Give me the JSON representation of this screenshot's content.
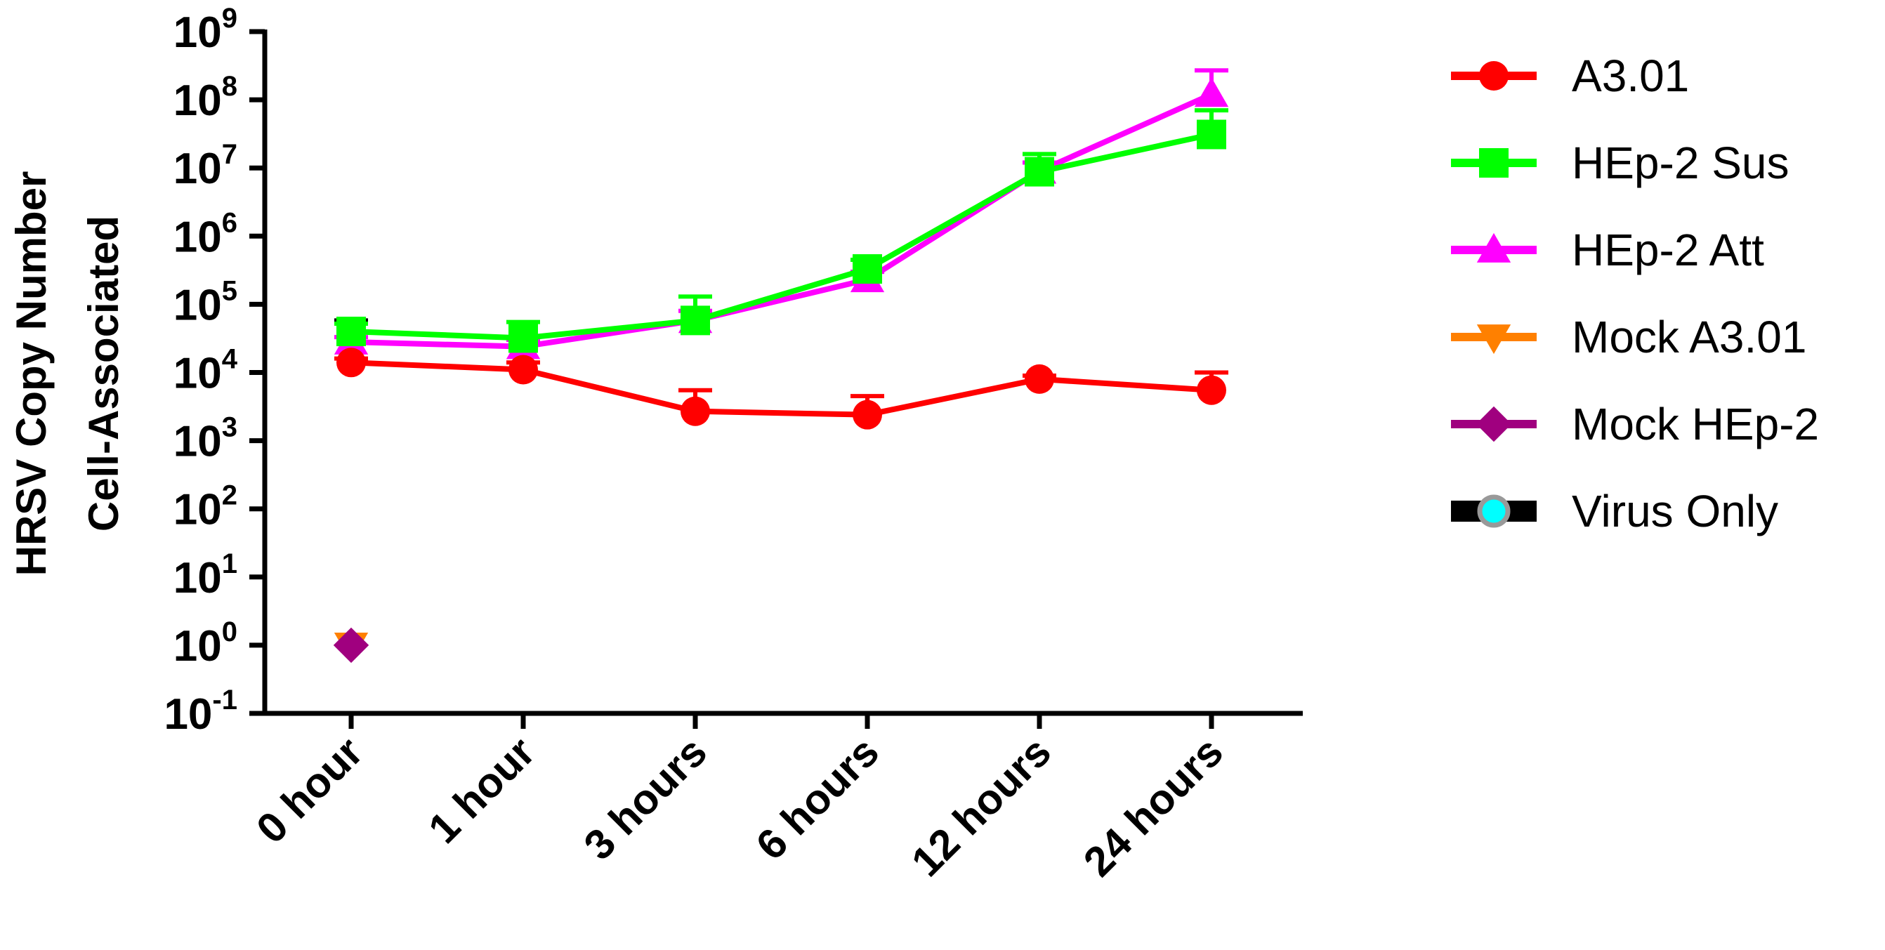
{
  "chart_data": {
    "type": "line",
    "ylabel_lines": [
      "HRSV Copy Number",
      "Cell-Associated"
    ],
    "xlabel": "",
    "categories": [
      "0 hour",
      "1 hour",
      "3 hours",
      "6 hours",
      "12 hours",
      "24 hours"
    ],
    "y_scale": "log10",
    "ylim": [
      0.1,
      1000000000
    ],
    "y_ticks": [
      {
        "base": "10",
        "exp": "9"
      },
      {
        "base": "10",
        "exp": "8"
      },
      {
        "base": "10",
        "exp": "7"
      },
      {
        "base": "10",
        "exp": "6"
      },
      {
        "base": "10",
        "exp": "5"
      },
      {
        "base": "10",
        "exp": "4"
      },
      {
        "base": "10",
        "exp": "3"
      },
      {
        "base": "10",
        "exp": "2"
      },
      {
        "base": "10",
        "exp": "1"
      },
      {
        "base": "10",
        "exp": "0"
      },
      {
        "base": "10",
        "exp": "-1"
      }
    ],
    "legend_position": "right",
    "series": [
      {
        "name": "A3.01",
        "color": "#ff0000",
        "marker": "circle",
        "values": [
          14000,
          11000,
          2700,
          2400,
          8000,
          5500
        ],
        "err_upper": [
          16000,
          14000,
          5500,
          4500,
          9000,
          10000
        ]
      },
      {
        "name": "HEp-2 Sus",
        "color": "#00ff00",
        "marker": "square",
        "values": [
          40000,
          32000,
          58000,
          330000,
          8800000,
          31000000
        ],
        "err_upper": [
          52000,
          55000,
          130000,
          450000,
          16000000,
          70000000
        ]
      },
      {
        "name": "HEp-2 Att",
        "color": "#ff00ff",
        "marker": "triangle-up",
        "values": [
          28000,
          24000,
          58000,
          230000,
          9000000,
          120000000
        ],
        "err_upper": [
          33000,
          30000,
          80000,
          300000,
          12000000,
          270000000
        ]
      },
      {
        "name": "Mock A3.01",
        "color": "#ff8000",
        "marker": "triangle-down",
        "values": [
          1,
          null,
          null,
          null,
          null,
          null
        ],
        "err_upper": [
          null,
          null,
          null,
          null,
          null,
          null
        ]
      },
      {
        "name": "Mock HEp-2",
        "color": "#a0007f",
        "marker": "diamond",
        "values": [
          1,
          null,
          null,
          null,
          null,
          null
        ],
        "err_upper": [
          null,
          null,
          null,
          null,
          null,
          null
        ]
      },
      {
        "name": "Virus Only",
        "color": "#000000",
        "marker": "circle-cyan",
        "values": [
          30000,
          null,
          null,
          null,
          null,
          null
        ],
        "err_upper": [
          58000,
          null,
          null,
          null,
          null,
          null
        ]
      }
    ]
  }
}
